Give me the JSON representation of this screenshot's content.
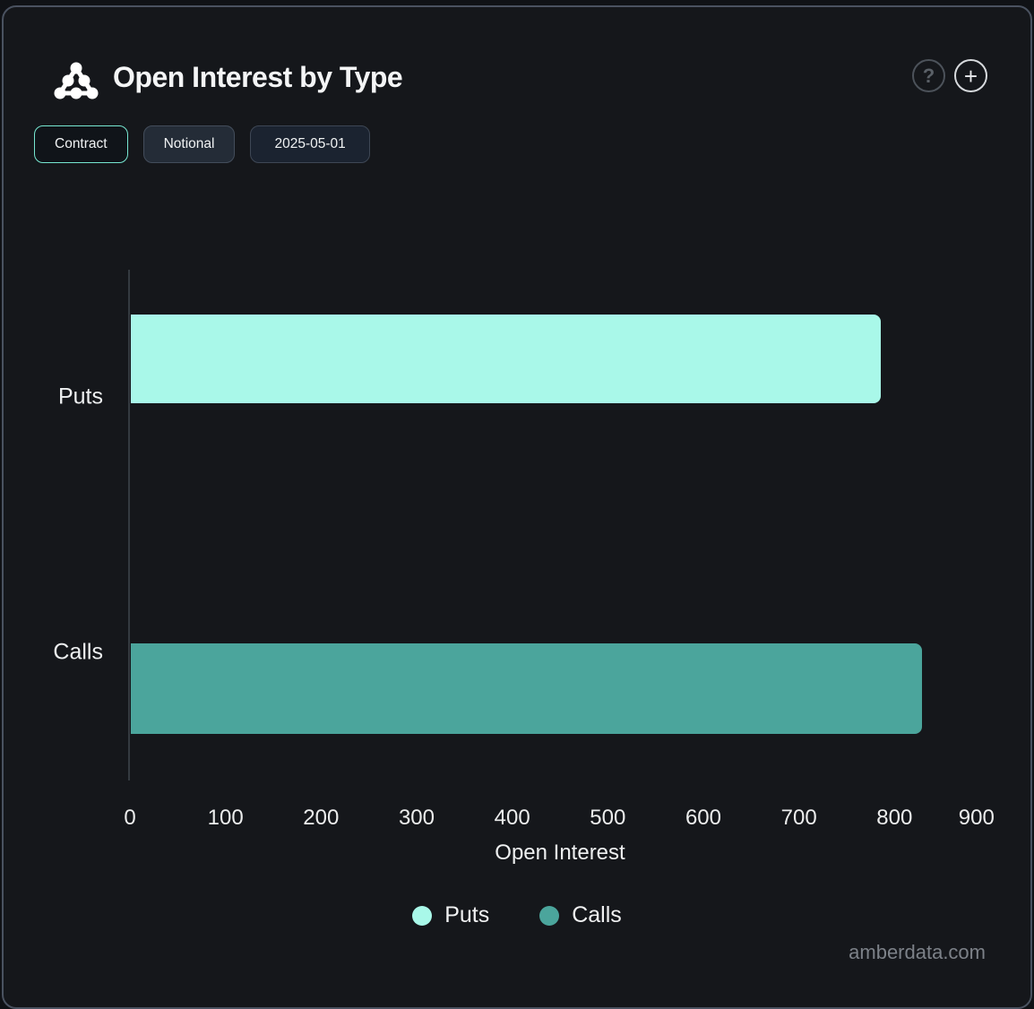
{
  "header": {
    "title": "Open Interest by Type",
    "help_glyph": "?",
    "add_glyph": "+"
  },
  "toolbar": {
    "contract_label": "Contract",
    "notional_label": "Notional",
    "date_value": "2025-05-01"
  },
  "chart_data": {
    "type": "bar",
    "orientation": "horizontal",
    "title": "Open Interest by Type",
    "categories": [
      "Puts",
      "Calls"
    ],
    "values": [
      785,
      828
    ],
    "colors": [
      "#a9f8e9",
      "#4ba59c"
    ],
    "xlabel": "Open Interest",
    "ylabel": "",
    "xlim": [
      0,
      900
    ],
    "xticks": [
      0,
      100,
      200,
      300,
      400,
      500,
      600,
      700,
      800,
      900
    ],
    "grid": false,
    "legend": [
      {
        "label": "Puts",
        "color": "#a9f8e9"
      },
      {
        "label": "Calls",
        "color": "#4ba59c"
      }
    ],
    "legend_position": "bottom"
  },
  "footer": {
    "watermark": "amberdata.com"
  }
}
